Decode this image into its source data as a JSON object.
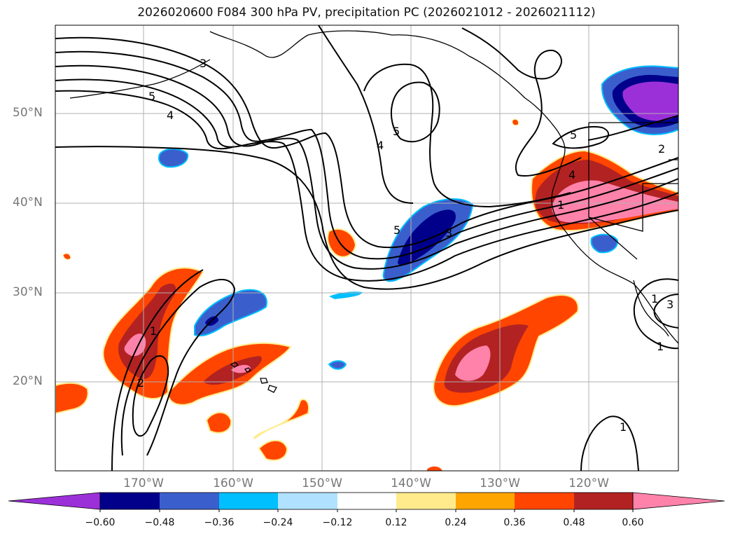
{
  "title": "2026020600 F084 300 hPa PV, precipitation PC (2026021012 - 2026021112)",
  "map": {
    "lat_labels": [
      "50°N",
      "40°N",
      "30°N",
      "20°N"
    ],
    "lon_labels": [
      "170°W",
      "160°W",
      "150°W",
      "140°W",
      "130°W",
      "120°W"
    ],
    "pv_contour_labels": [
      "3",
      "5",
      "4",
      "5",
      "4",
      "5",
      "3",
      "1",
      "2",
      "1",
      "5",
      "4",
      "2",
      "1",
      "3",
      "1",
      "1"
    ]
  },
  "colorbar": {
    "colors": [
      "#9b30d9",
      "#00008b",
      "#3a5fcd",
      "#00bfff",
      "#b0e2ff",
      "#ffffff",
      "#ffeb8c",
      "#ffa500",
      "#ff4500",
      "#b22222",
      "#ff82ab"
    ],
    "labels": [
      "−0.60",
      "−0.48",
      "−0.36",
      "−0.24",
      "−0.12",
      "0.12",
      "0.24",
      "0.36",
      "0.48",
      "0.60"
    ]
  }
}
